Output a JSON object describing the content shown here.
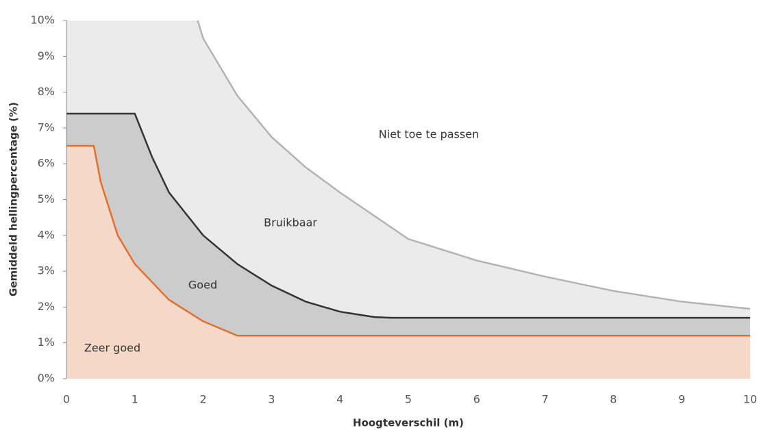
{
  "chart_data": {
    "type": "area",
    "xlabel": "Hoogteverschil (m)",
    "ylabel": "Gemiddeld hellingpercentage (%)",
    "xlim": [
      0,
      10
    ],
    "xticks": [
      0,
      1,
      2,
      3,
      4,
      5,
      6,
      7,
      8,
      9,
      10
    ],
    "ylim": [
      0,
      10
    ],
    "yticks": [
      {
        "value": 0,
        "label": "0%"
      },
      {
        "value": 1,
        "label": "1%"
      },
      {
        "value": 2,
        "label": "2%"
      },
      {
        "value": 3,
        "label": "3%"
      },
      {
        "value": 4,
        "label": "4%"
      },
      {
        "value": 5,
        "label": "5%"
      },
      {
        "value": 6,
        "label": "6%"
      },
      {
        "value": 7,
        "label": "7%"
      },
      {
        "value": 8,
        "label": "8%"
      },
      {
        "value": 9,
        "label": "9%"
      },
      {
        "value": 10,
        "label": "10%"
      }
    ],
    "series": [
      {
        "color": "#b3b3b3",
        "fill": "#ebebeb",
        "x": [
          1.92,
          2,
          2.5,
          3,
          3.5,
          4,
          5,
          6,
          7,
          8,
          9,
          10
        ],
        "values": [
          10,
          9.5,
          7.9,
          6.75,
          5.9,
          5.2,
          3.9,
          3.3,
          2.85,
          2.45,
          2.15,
          1.95
        ]
      },
      {
        "color": "#333333",
        "fill": "#cccccc",
        "x": [
          0,
          1,
          1.25,
          1.5,
          2,
          2.5,
          3,
          3.5,
          4,
          4.5,
          4.75,
          10
        ],
        "values": [
          7.4,
          7.4,
          6.2,
          5.2,
          4.0,
          3.2,
          2.6,
          2.15,
          1.87,
          1.72,
          1.7,
          1.7
        ]
      },
      {
        "color": "#e07030",
        "fill": "#f6d8c8",
        "x": [
          0,
          0.4,
          0.5,
          0.75,
          1,
          1.5,
          2,
          2.5,
          10
        ],
        "values": [
          6.5,
          6.5,
          5.5,
          4.0,
          3.2,
          2.2,
          1.6,
          1.2,
          1.2
        ]
      }
    ],
    "annotations": [
      "Niet toe te passen",
      "Bruikbaar",
      "Goed",
      "Zeer goed"
    ]
  }
}
